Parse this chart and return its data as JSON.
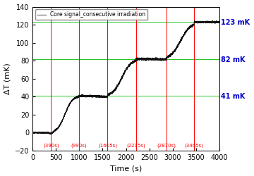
{
  "title": "Core signal_consecutive irradiation",
  "xlabel": "Time (s)",
  "ylabel": "ΔT (mK)",
  "xlim": [
    0,
    4000
  ],
  "ylim": [
    -20,
    140
  ],
  "yticks": [
    -20,
    0,
    20,
    40,
    60,
    80,
    100,
    120,
    140
  ],
  "xticks": [
    0,
    500,
    1000,
    1500,
    2000,
    2500,
    3000,
    3500,
    4000
  ],
  "red_vlines": [
    390,
    990,
    1605,
    2215,
    2870,
    3465
  ],
  "vline_labels": [
    "(390s)",
    "(990s)",
    "(1605s)",
    "(2215s)",
    "(2870s)",
    "(3465s)"
  ],
  "green_hlines": [
    41,
    82,
    123
  ],
  "hline_labels": [
    "41 mK",
    "82 mK",
    "123 mK"
  ],
  "line_color": "#111111",
  "red_color": "#ff0000",
  "green_color": "#00bb00",
  "blue_label_color": "#0000cc",
  "background_color": "#ffffff",
  "legend_line_color": "#888888"
}
